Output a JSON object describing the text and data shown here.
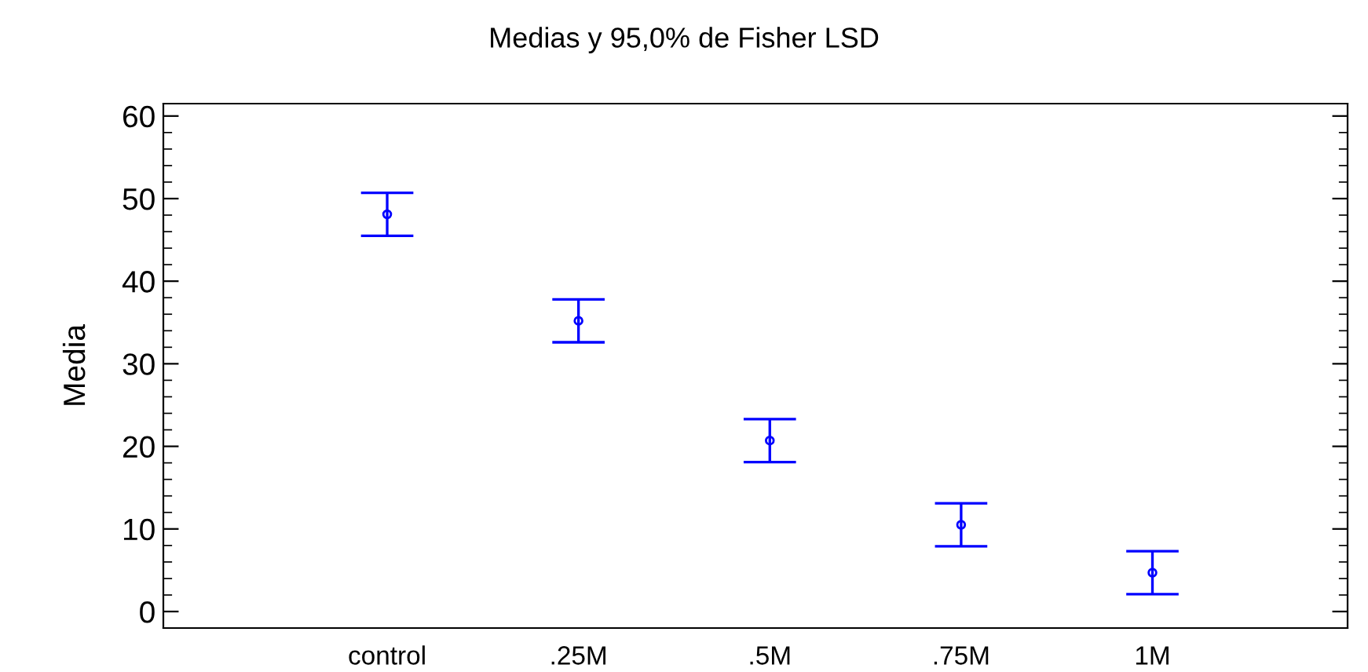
{
  "chart_data": {
    "type": "scatter",
    "title": "Medias y 95,0% de Fisher LSD",
    "ylabel": "Media",
    "categories": [
      "control",
      ".25M",
      ".5M",
      ".75M",
      "1M"
    ],
    "series": [
      {
        "color": "#0000ff",
        "values": [
          48.1,
          35.2,
          20.7,
          10.5,
          4.7
        ],
        "errors": [
          2.6,
          2.6,
          2.6,
          2.6,
          2.6
        ]
      }
    ],
    "ylim": [
      -2,
      61.5
    ],
    "yticks": [
      0,
      10,
      20,
      30,
      40,
      50,
      60
    ],
    "marker": "circle",
    "grid": false
  }
}
